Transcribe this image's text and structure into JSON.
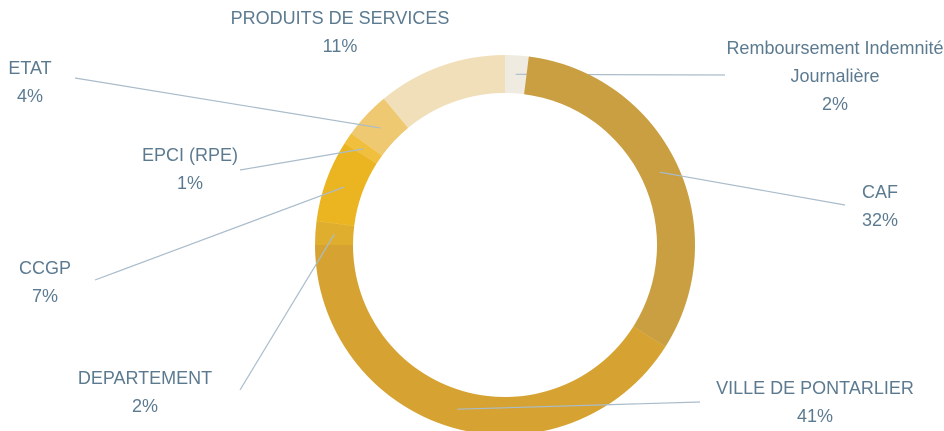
{
  "chart_data": {
    "type": "donut",
    "categories": [
      "Remboursement Indemnité Journalière",
      "CAF",
      "VILLE DE PONTARLIER",
      "DEPARTEMENT",
      "CCGP",
      "EPCI (RPE)",
      "ETAT",
      "PRODUITS DE SERVICES"
    ],
    "values": [
      2,
      32,
      41,
      2,
      7,
      1,
      4,
      11
    ],
    "value_labels": [
      "2%",
      "32%",
      "41%",
      "2%",
      "7%",
      "1%",
      "4%",
      "11%"
    ],
    "colors": [
      "#efebe0",
      "#c99f42",
      "#d6a332",
      "#dfae2f",
      "#ebb522",
      "#efbf3d",
      "#efc872",
      "#f1dfba"
    ]
  }
}
